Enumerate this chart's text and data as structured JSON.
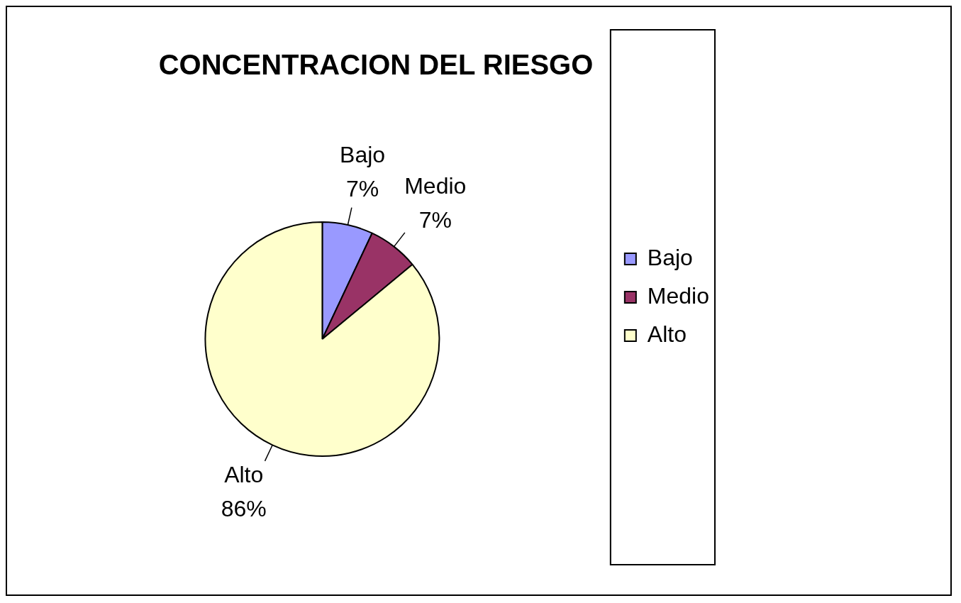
{
  "chart_data": {
    "type": "pie",
    "title": "CONCENTRACION DEL RIESGO",
    "categories": [
      "Bajo",
      "Medio",
      "Alto"
    ],
    "values": [
      7,
      7,
      86
    ],
    "value_labels": [
      "7%",
      "7%",
      "86%"
    ],
    "colors": [
      "#9999ff",
      "#993366",
      "#ffffcc"
    ],
    "legend": "right"
  }
}
